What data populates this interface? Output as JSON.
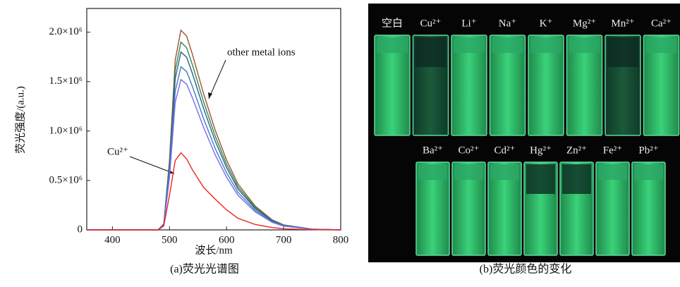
{
  "chart_data": {
    "type": "line",
    "ylabel": "荧光强度/(a.u.)",
    "xlabel": "波长/nm",
    "caption": "(a)荧光光谱图",
    "annotations": [
      "other metal ions",
      "Cu²⁺"
    ],
    "x": [
      355,
      400,
      450,
      480,
      490,
      500,
      510,
      520,
      530,
      540,
      560,
      580,
      600,
      620,
      650,
      680,
      700,
      750,
      800
    ],
    "xlim": [
      355,
      800
    ],
    "xticks": [
      400,
      500,
      600,
      700,
      800
    ],
    "ylim": [
      0,
      2240000
    ],
    "yticks": [
      0,
      {
        "value": 500000,
        "label": "0.5×10⁶"
      },
      {
        "value": 1000000,
        "label": "1.0×10⁶"
      },
      {
        "value": 1500000,
        "label": "1.5×10⁶"
      },
      {
        "value": 2000000,
        "label": "2.0×10⁶"
      }
    ],
    "series": [
      {
        "color": "#a0522d",
        "values": [
          0,
          0,
          0,
          0,
          60600,
          707000,
          1717000,
          2020000,
          1959400,
          1777600,
          1373600,
          1010000,
          707000,
          464600,
          242400,
          101000,
          50500,
          8080,
          0
        ]
      },
      {
        "color": "#2e8b57",
        "values": [
          0,
          0,
          0,
          0,
          57000,
          665000,
          1615000,
          1900000,
          1843000,
          1672000,
          1292000,
          950000,
          665000,
          437000,
          228000,
          95000,
          47500,
          7600,
          0
        ]
      },
      {
        "color": "#2f5f8a",
        "values": [
          0,
          0,
          0,
          0,
          54000,
          630000,
          1530000,
          1800000,
          1746000,
          1584000,
          1224000,
          900000,
          630000,
          414000,
          216000,
          90000,
          45000,
          7200,
          0
        ]
      },
      {
        "color": "#3a7fc4",
        "values": [
          0,
          0,
          0,
          0,
          49500,
          577500,
          1402500,
          1650000,
          1600500,
          1452000,
          1122000,
          825000,
          577500,
          379500,
          198000,
          82500,
          41250,
          6600,
          0
        ]
      },
      {
        "color": "#7b68ee",
        "values": [
          0,
          0,
          0,
          0,
          45600,
          532000,
          1292000,
          1520000,
          1474400,
          1337600,
          1033600,
          760000,
          532000,
          349600,
          182400,
          76000,
          38000,
          6080,
          0
        ]
      },
      {
        "color": "#e8281e",
        "values": [
          0,
          0,
          0,
          0,
          39000,
          351000,
          702000,
          780000,
          717600,
          608400,
          429000,
          312000,
          202800,
          117000,
          54600,
          23400,
          11700,
          2340,
          0
        ]
      }
    ]
  },
  "photo": {
    "top_row": [
      "空白",
      "Cu²⁺",
      "Li⁺",
      "Na⁺",
      "K⁺",
      "Mg²⁺",
      "Mn²⁺",
      "Ca²⁺"
    ],
    "bottom_row": [
      "Ba²⁺",
      "Co²⁺",
      "Cd²⁺",
      "Hg²⁺",
      "Zn²⁺",
      "Fe²⁺",
      "Pb²⁺"
    ],
    "caption": "(b)荧光颜色的变化"
  }
}
